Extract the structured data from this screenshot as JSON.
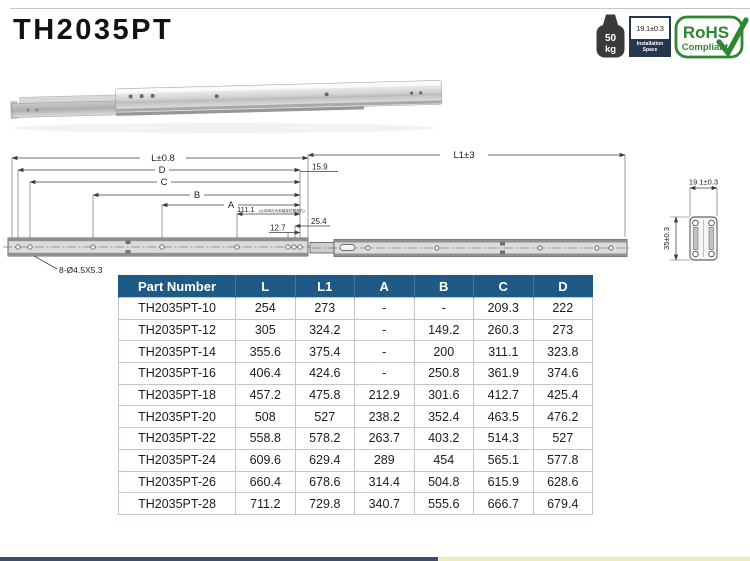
{
  "header": {
    "title": "TH2035PT",
    "load_badge": {
      "value": "50",
      "unit": "kg"
    },
    "installation_badge": {
      "dimension": "19.1±0.3",
      "label_line1": "Installation",
      "label_line2": "Space"
    },
    "rohs_badge": {
      "line1": "RoHS",
      "line2": "Compliant"
    }
  },
  "drawing": {
    "dim_L": "L±0.8",
    "dim_D": "D",
    "dim_C": "C",
    "dim_B": "B",
    "dim_A": "A",
    "dim_111": "111.1",
    "dim_111_note": "(以中间孔为安装定位基准孔)",
    "dim_15_9": "15.9",
    "dim_25_4": "25.4",
    "dim_12_7": "12.7",
    "hole_note": "8-Ø4.5X5.3",
    "dim_L1": "L1±3",
    "section_width": "19.1±0.3",
    "section_height": "35±0.3"
  },
  "table": {
    "headers": [
      "Part Number",
      "L",
      "L1",
      "A",
      "B",
      "C",
      "D"
    ],
    "rows": [
      [
        "TH2035PT-10",
        "254",
        "273",
        "-",
        "-",
        "209.3",
        "222"
      ],
      [
        "TH2035PT-12",
        "305",
        "324.2",
        "-",
        "149.2",
        "260.3",
        "273"
      ],
      [
        "TH2035PT-14",
        "355.6",
        "375.4",
        "-",
        "200",
        "311.1",
        "323.8"
      ],
      [
        "TH2035PT-16",
        "406.4",
        "424.6",
        "-",
        "250.8",
        "361.9",
        "374.6"
      ],
      [
        "TH2035PT-18",
        "457.2",
        "475.8",
        "212.9",
        "301.6",
        "412.7",
        "425.4"
      ],
      [
        "TH2035PT-20",
        "508",
        "527",
        "238.2",
        "352.4",
        "463.5",
        "476.2"
      ],
      [
        "TH2035PT-22",
        "558.8",
        "578.2",
        "263.7",
        "403.2",
        "514.3",
        "527"
      ],
      [
        "TH2035PT-24",
        "609.6",
        "629.4",
        "289",
        "454",
        "565.1",
        "577.8"
      ],
      [
        "TH2035PT-26",
        "660.4",
        "678.6",
        "314.4",
        "504.8",
        "615.9",
        "628.6"
      ],
      [
        "TH2035PT-28",
        "711.2",
        "729.8",
        "340.7",
        "555.6",
        "666.7",
        "679.4"
      ]
    ]
  },
  "colors": {
    "table_header_bg": "#1f5a87",
    "rohs_green": "#2f8632",
    "footer_left": "#3e4d66",
    "footer_right": "#f0eabd"
  }
}
